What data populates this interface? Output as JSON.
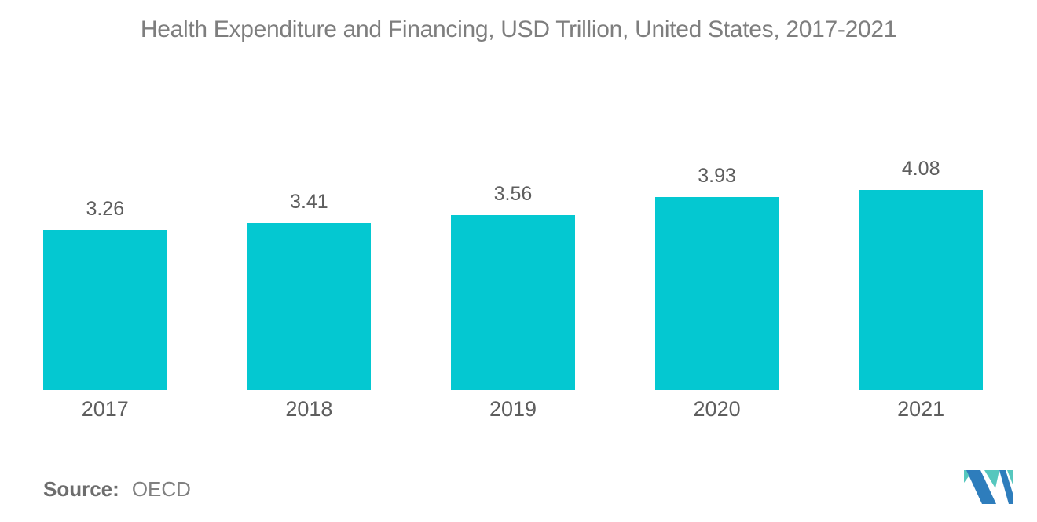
{
  "chart_data": {
    "type": "bar",
    "title": "Health Expenditure and Financing, USD Trillion, United States, 2017-2021",
    "categories": [
      "2017",
      "2018",
      "2019",
      "2020",
      "2021"
    ],
    "values": [
      3.26,
      3.41,
      3.56,
      3.93,
      4.08
    ],
    "data_labels": [
      "3.26",
      "3.41",
      "3.56",
      "3.93",
      "4.08"
    ],
    "xlabel": "",
    "ylabel": "",
    "ylim": [
      0,
      4.08
    ],
    "grid": false,
    "legend": false,
    "axis_lines": false,
    "bar_color": "#04C8D1",
    "label_color": "#5e5e5e",
    "title_color": "#7e7e7e"
  },
  "source": {
    "label": "Source:",
    "value": "OECD"
  },
  "logo": {
    "name": "mordor-intelligence-logo",
    "blue": "#2E7DBC",
    "teal": "#56C7BE"
  }
}
